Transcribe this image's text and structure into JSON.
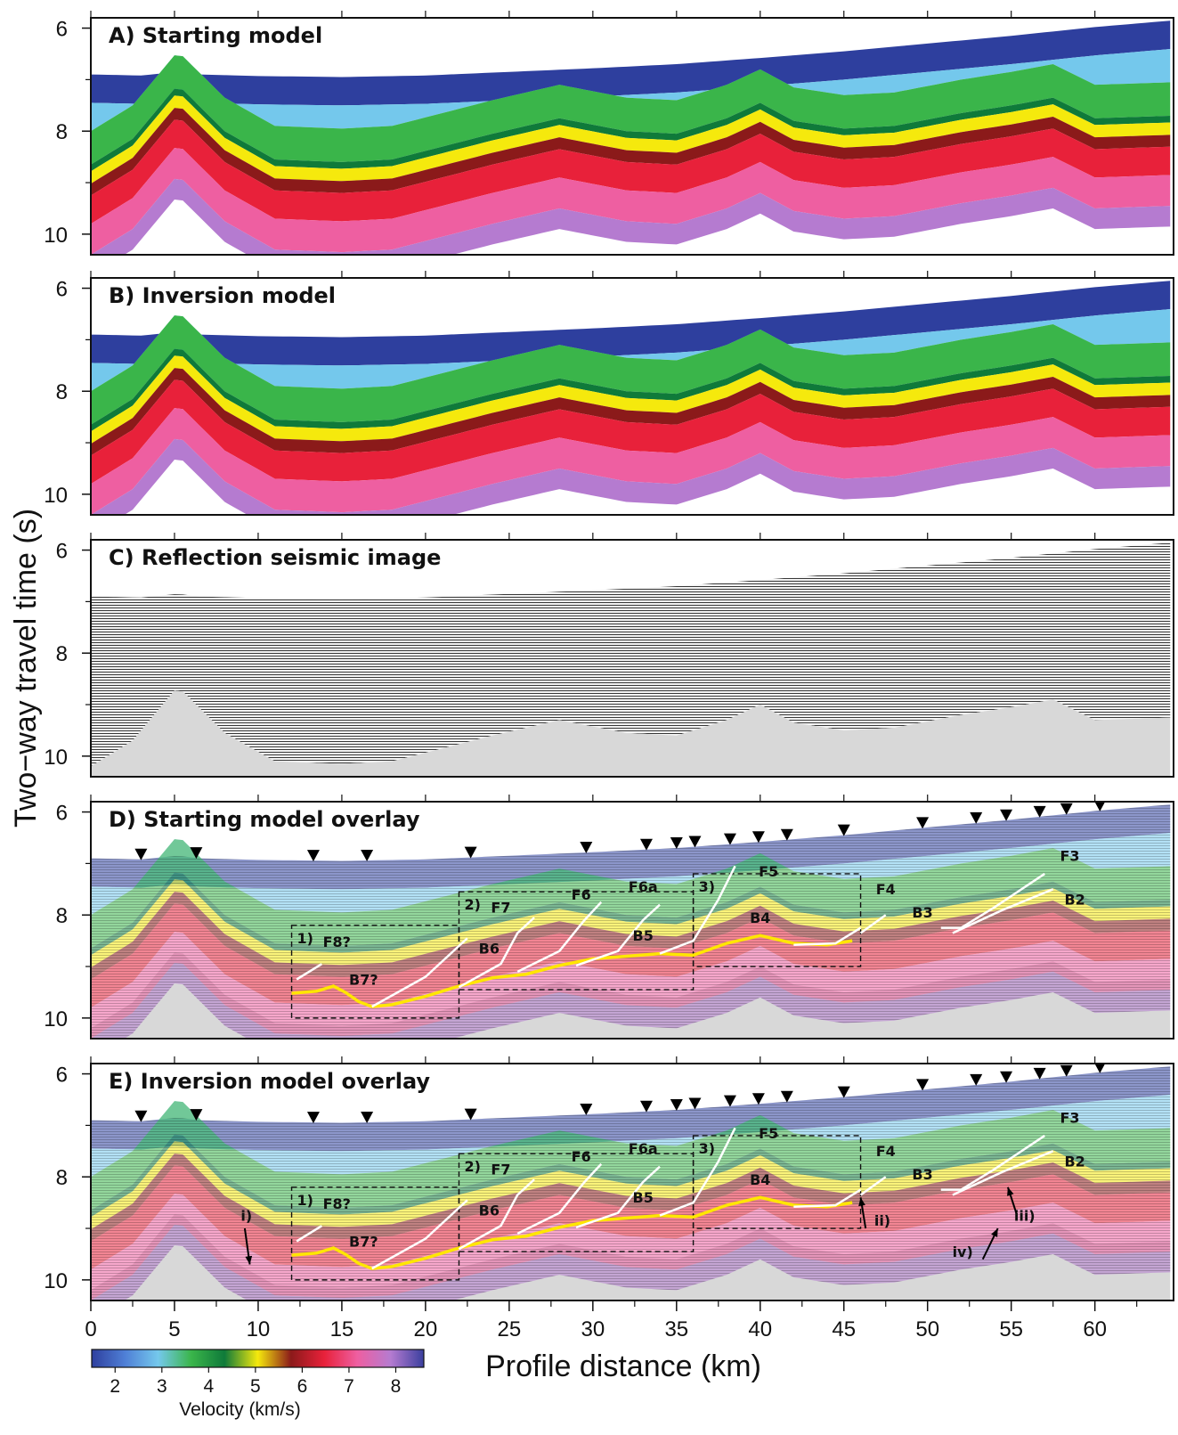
{
  "chart_data": {
    "type": "heatmap",
    "ylabel": "Two−way travel time (s)",
    "xlabel": "Profile distance (km)",
    "xlim": [
      0,
      64.7
    ],
    "ylim_twt_s": [
      5.8,
      10.4
    ],
    "x_ticks": [
      0,
      5,
      10,
      15,
      20,
      25,
      30,
      35,
      40,
      45,
      50,
      55,
      60
    ],
    "x_tick_labels": [
      "0",
      "5",
      "10",
      "15",
      "20",
      "25",
      "30",
      "35",
      "40",
      "45",
      "50",
      "55",
      "60"
    ],
    "y_ticks": [
      6,
      8,
      10
    ],
    "y_tick_labels": [
      "6",
      "8",
      "10"
    ],
    "colorbar": {
      "label": "Velocity (km/s)",
      "range": [
        1.5,
        8.6
      ],
      "ticks": [
        2,
        3,
        4,
        5,
        6,
        7,
        8
      ],
      "tick_labels": [
        "2",
        "3",
        "4",
        "5",
        "6",
        "7",
        "8"
      ],
      "colors": [
        "#2e3f9e",
        "#4f7fd6",
        "#74c8ec",
        "#3ab54a",
        "#0f7a3a",
        "#f5e90d",
        "#8b1a1a",
        "#e8213a",
        "#ee5fa1",
        "#b57bd0",
        "#3a3f9e"
      ]
    },
    "panels": [
      {
        "id": "A",
        "title": "A) Starting model",
        "kind": "velocity"
      },
      {
        "id": "B",
        "title": "B) Inversion model",
        "kind": "velocity"
      },
      {
        "id": "C",
        "title": "C) Reflection seismic image",
        "kind": "seismic"
      },
      {
        "id": "D",
        "title": "D) Starting model overlay",
        "kind": "overlay"
      },
      {
        "id": "E",
        "title": "E) Inversion model overlay",
        "kind": "overlay"
      }
    ],
    "seafloor_twt": [
      [
        0,
        6.9
      ],
      [
        3,
        6.92
      ],
      [
        5.2,
        6.85
      ],
      [
        6.5,
        6.9
      ],
      [
        10,
        6.93
      ],
      [
        15,
        6.95
      ],
      [
        20,
        6.92
      ],
      [
        25,
        6.85
      ],
      [
        30,
        6.78
      ],
      [
        35,
        6.7
      ],
      [
        40,
        6.58
      ],
      [
        45,
        6.45
      ],
      [
        50,
        6.3
      ],
      [
        55,
        6.15
      ],
      [
        60,
        5.98
      ],
      [
        64.7,
        5.85
      ]
    ],
    "basement_twt": [
      [
        0,
        9.2
      ],
      [
        2.5,
        8.7
      ],
      [
        5.2,
        7.65
      ],
      [
        8,
        8.55
      ],
      [
        11,
        9.1
      ],
      [
        15,
        9.15
      ],
      [
        18,
        9.1
      ],
      [
        21,
        8.85
      ],
      [
        24,
        8.6
      ],
      [
        28,
        8.3
      ],
      [
        32,
        8.55
      ],
      [
        35,
        8.6
      ],
      [
        38,
        8.3
      ],
      [
        40,
        8.0
      ],
      [
        42,
        8.35
      ],
      [
        45,
        8.5
      ],
      [
        48,
        8.45
      ],
      [
        52,
        8.2
      ],
      [
        55,
        8.05
      ],
      [
        57.5,
        7.9
      ],
      [
        60,
        8.3
      ],
      [
        64.7,
        8.25
      ]
    ],
    "fault_picks": {
      "yellow_horizon": [
        [
          12,
          9.52
        ],
        [
          13.5,
          9.48
        ],
        [
          14.5,
          9.38
        ],
        [
          15.2,
          9.5
        ],
        [
          16,
          9.68
        ],
        [
          16.8,
          9.78
        ],
        [
          18,
          9.74
        ],
        [
          20,
          9.58
        ],
        [
          22,
          9.38
        ],
        [
          24,
          9.22
        ],
        [
          26,
          9.15
        ],
        [
          28,
          8.98
        ],
        [
          30,
          8.85
        ],
        [
          32,
          8.8
        ],
        [
          34,
          8.75
        ],
        [
          36,
          8.78
        ],
        [
          38,
          8.55
        ],
        [
          40,
          8.4
        ],
        [
          42,
          8.55
        ],
        [
          44,
          8.58
        ],
        [
          45.5,
          8.5
        ]
      ],
      "white_faults": [
        [
          [
            12.3,
            9.25
          ],
          [
            13.8,
            8.95
          ]
        ],
        [
          [
            16.8,
            9.78
          ],
          [
            20,
            9.2
          ],
          [
            22.5,
            8.45
          ]
        ],
        [
          [
            22,
            9.4
          ],
          [
            24.5,
            8.95
          ],
          [
            25.5,
            8.35
          ],
          [
            26.5,
            8.05
          ]
        ],
        [
          [
            25.5,
            9.1
          ],
          [
            28,
            8.7
          ],
          [
            29.5,
            8.1
          ],
          [
            30.5,
            7.75
          ]
        ],
        [
          [
            29,
            8.98
          ],
          [
            31.5,
            8.7
          ],
          [
            33,
            8.1
          ],
          [
            34,
            7.8
          ]
        ],
        [
          [
            34,
            8.75
          ],
          [
            36,
            8.5
          ],
          [
            37.5,
            7.7
          ],
          [
            38.5,
            7.05
          ]
        ],
        [
          [
            42,
            8.58
          ],
          [
            44.5,
            8.55
          ],
          [
            46,
            8.25
          ]
        ],
        [
          [
            46,
            8.35
          ],
          [
            47.5,
            8.0
          ]
        ],
        [
          [
            50.8,
            8.25
          ],
          [
            52,
            8.25
          ],
          [
            54,
            7.85
          ],
          [
            57,
            7.2
          ]
        ],
        [
          [
            51.5,
            8.35
          ],
          [
            54.5,
            7.9
          ],
          [
            57.5,
            7.5
          ]
        ]
      ]
    },
    "annotations": {
      "panel_D": [
        "F8?",
        "F7",
        "F6",
        "F6a",
        "F5",
        "F4",
        "F3",
        "B7?",
        "B6",
        "B5",
        "B4",
        "B3",
        "B2",
        "1)",
        "2)",
        "3)"
      ],
      "panel_E": [
        "F8?",
        "F7",
        "F6",
        "F6a",
        "F5",
        "F4",
        "F3",
        "B7?",
        "B6",
        "B5",
        "B4",
        "B3",
        "B2",
        "1)",
        "2)",
        "3)",
        "i)",
        "ii)",
        "iii)",
        "iv)"
      ]
    },
    "boxes": [
      {
        "label": "1)",
        "x": [
          12,
          22
        ],
        "twt": [
          8.2,
          10.0
        ]
      },
      {
        "label": "2)",
        "x": [
          22,
          36
        ],
        "twt": [
          7.55,
          9.45
        ]
      },
      {
        "label": "3)",
        "x": [
          36,
          46
        ],
        "twt": [
          7.2,
          9.0
        ]
      }
    ],
    "station_triangles_km": [
      3,
      6.3,
      13.3,
      16.5,
      22.7,
      29.6,
      33.2,
      35,
      36.1,
      38.2,
      39.9,
      41.6,
      45,
      49.7,
      52.9,
      54.7,
      56.7,
      58.3,
      60.3
    ],
    "arrows_E": [
      {
        "label": "i)",
        "from": [
          9.2,
          9.0
        ],
        "to": [
          9.5,
          9.7
        ]
      },
      {
        "label": "ii)",
        "from": [
          46.3,
          9.0
        ],
        "to": [
          46.0,
          8.4
        ]
      },
      {
        "label": "iii)",
        "from": [
          55.3,
          8.7
        ],
        "to": [
          54.8,
          8.2
        ]
      },
      {
        "label": "iv)",
        "from": [
          53.3,
          9.6
        ],
        "to": [
          54.2,
          9.0
        ]
      }
    ]
  }
}
